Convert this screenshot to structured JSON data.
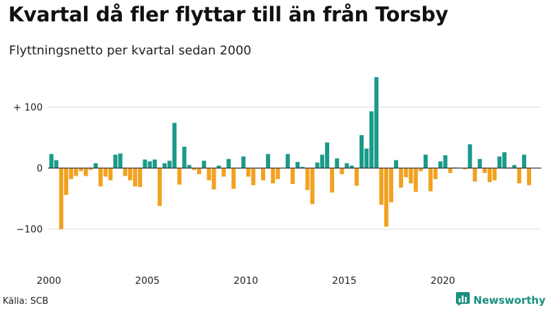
{
  "title": "Kvartal då fler flyttar till än från Torsby",
  "subtitle": "Flyttningsnetto per kvartal sedan 2000",
  "source": "Källa: SCB",
  "brand": {
    "name": "Newsworthy",
    "icon": "bar-chart-icon",
    "color": "#1a8f7e"
  },
  "colors": {
    "positive": "#1a9a8a",
    "negative": "#f2a11f",
    "grid": "#dddddd",
    "zero_line": "#333333"
  },
  "chart_data": {
    "type": "bar",
    "title": "Kvartal då fler flyttar till än från Torsby",
    "subtitle": "Flyttningsnetto per kvartal sedan 2000",
    "xlabel": "",
    "ylabel": "",
    "ylim": [
      -130,
      150
    ],
    "grid": true,
    "yticks": [
      {
        "value": 100,
        "label": "+ 100"
      },
      {
        "value": 0,
        "label": "0"
      },
      {
        "value": -100,
        "label": "−100"
      }
    ],
    "xticks": [
      {
        "value": 2000,
        "label": "2000"
      },
      {
        "value": 2005,
        "label": "2005"
      },
      {
        "value": 2010,
        "label": "2010"
      },
      {
        "value": 2015,
        "label": "2015"
      },
      {
        "value": 2020,
        "label": "2020"
      }
    ],
    "start": {
      "year": 2000,
      "quarter": 1
    },
    "values": [
      23,
      13,
      -100,
      -44,
      -18,
      -13,
      -5,
      -13,
      -3,
      8,
      -30,
      -14,
      -20,
      22,
      24,
      -13,
      -20,
      -30,
      -31,
      14,
      11,
      14,
      -62,
      8,
      12,
      74,
      -27,
      35,
      5,
      -3,
      -10,
      12,
      -20,
      -35,
      4,
      -14,
      15,
      -34,
      -1,
      19,
      -14,
      -28,
      -1,
      -20,
      23,
      -25,
      -18,
      0,
      23,
      -26,
      10,
      2,
      -36,
      -59,
      9,
      22,
      42,
      -40,
      16,
      -10,
      8,
      4,
      -29,
      54,
      32,
      93,
      149,
      -60,
      -96,
      -56,
      13,
      -32,
      -15,
      -25,
      -39,
      -5,
      22,
      -38,
      -18,
      11,
      21,
      -8,
      1,
      0,
      -2,
      39,
      -22,
      15,
      -8,
      -23,
      -20,
      19,
      26,
      1,
      5,
      -25,
      22,
      -28
    ]
  }
}
